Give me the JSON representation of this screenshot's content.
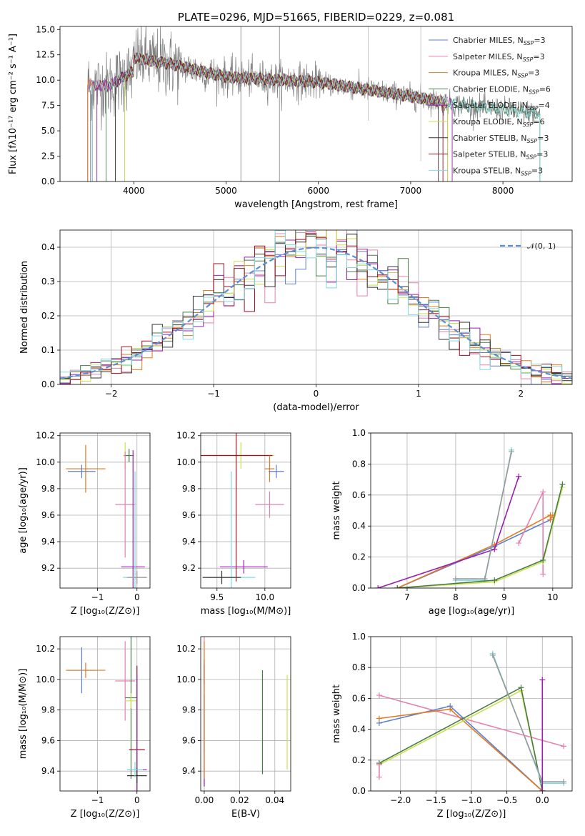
{
  "chart_data": [
    {
      "id": "spectrum",
      "type": "line",
      "title": "PLATE=0296, MJD=51665, FIBERID=0229, z=0.081",
      "xlabel": "wavelength [Angstrom, rest frame]",
      "ylabel": "Flux [fλ10⁻¹⁷ erg cm⁻² s⁻¹ A⁻¹]",
      "xlim": [
        3200,
        8750
      ],
      "ylim": [
        0,
        15.3
      ],
      "xticks": [
        4000,
        5000,
        6000,
        7000,
        8000
      ],
      "yticks": [
        0.0,
        2.5,
        5.0,
        7.5,
        10.0,
        12.5,
        15.0
      ],
      "grid": false,
      "legend_position": "top-right",
      "data_color": "#808080",
      "legend": [
        {
          "name": "Chabrier MILES, N",
          "sub": "SSP",
          "suffix": "=3",
          "color": "#5b7fd4"
        },
        {
          "name": "Salpeter MILES, N",
          "sub": "SSP",
          "suffix": "=3",
          "color": "#e680b0"
        },
        {
          "name": "Kroupa MILES, N",
          "sub": "SSP",
          "suffix": "=3",
          "color": "#e07a1f"
        },
        {
          "name": "Chabrier ELODIE, N",
          "sub": "SSP",
          "suffix": "=6",
          "color": "#4a7a4a"
        },
        {
          "name": "Salpeter ELODIE, N",
          "sub": "SSP",
          "suffix": "=4",
          "color": "#9a1fb0"
        },
        {
          "name": "Kroupa ELODIE, N",
          "sub": "SSP",
          "suffix": "=6",
          "color": "#c7e34a"
        },
        {
          "name": "Chabrier STELIB, N",
          "sub": "SSP",
          "suffix": "=3",
          "color": "#333333"
        },
        {
          "name": "Salpeter STELIB, N",
          "sub": "SSP",
          "suffix": "=3",
          "color": "#a01020"
        },
        {
          "name": "Kroupa STELIB, N",
          "sub": "SSP",
          "suffix": "=3",
          "color": "#7fdbe0"
        }
      ]
    },
    {
      "id": "residuals",
      "type": "line",
      "xlabel": "(data-model)/error",
      "ylabel": "Normed distribution",
      "xlim": [
        -2.5,
        2.5
      ],
      "ylim": [
        0,
        0.45
      ],
      "xticks": [
        -2,
        -1,
        0,
        1,
        2
      ],
      "yticks": [
        0.0,
        0.1,
        0.2,
        0.3,
        0.4
      ],
      "grid": true,
      "legend_position": "top-right",
      "gaussian_label": "𝒩(0, 1)",
      "gaussian_color": "#5b8fd4",
      "hist_bin_width": 0.1,
      "hist_range": [
        -2.5,
        2.5
      ]
    },
    {
      "id": "age_vs_Z",
      "type": "scatter",
      "xlabel": "Z [log₁₀(Z/Z⊙)]",
      "ylabel": "age  [log₁₀(age/yr)]",
      "xlim": [
        -1.95,
        0.33
      ],
      "ylim": [
        9.05,
        10.22
      ],
      "xticks": [
        -1,
        0
      ],
      "yticks": [
        9.2,
        9.4,
        9.6,
        9.8,
        10.0,
        10.2
      ],
      "grid": true,
      "points": [
        {
          "x": -1.3,
          "y": 9.95,
          "xe": 0.5,
          "ye": 0.18,
          "color": "#e07a1f"
        },
        {
          "x": -1.4,
          "y": 9.93,
          "xe": 0.35,
          "ye": 0.05,
          "color": "#5b7fd4"
        },
        {
          "x": -0.3,
          "y": 10.05,
          "xe": 0.05,
          "ye": 0.1,
          "color": "#c7e34a"
        },
        {
          "x": -0.2,
          "y": 10.05,
          "xe": 0.12,
          "ye": 0.05,
          "color": "#4a7a4a"
        },
        {
          "x": -0.3,
          "y": 9.68,
          "xe": 0.25,
          "ye": 0.4,
          "color": "#e680b0"
        },
        {
          "x": -0.1,
          "y": 9.21,
          "xe": 0.3,
          "ye": 0.88,
          "color": "#9a1fb0"
        },
        {
          "x": -0.05,
          "y": 9.13,
          "xe": 0.3,
          "ye": 0.8,
          "color": "#7fdbe0"
        },
        {
          "x": 0.0,
          "y": 9.13,
          "xe": 0.25,
          "ye": 0.05,
          "color": "#999999"
        }
      ]
    },
    {
      "id": "age_vs_mass",
      "type": "scatter",
      "xlabel": "mass [log₁₀(M/M⊙)]",
      "xlim": [
        9.33,
        10.27
      ],
      "ylim": [
        9.05,
        10.22
      ],
      "xticks": [
        9.5,
        10.0
      ],
      "yticks": [
        9.2,
        9.4,
        9.6,
        9.8,
        10.0,
        10.2
      ],
      "grid": true,
      "points": [
        {
          "x": 9.75,
          "y": 10.05,
          "xe": 0.35,
          "ye": 0.1,
          "color": "#c7e34a"
        },
        {
          "x": 9.7,
          "y": 10.05,
          "xe": 0.38,
          "ye": 0.95,
          "color": "#a01020"
        },
        {
          "x": 10.05,
          "y": 9.95,
          "xe": 0.05,
          "ye": 0.1,
          "color": "#e07a1f"
        },
        {
          "x": 10.12,
          "y": 9.93,
          "xe": 0.08,
          "ye": 0.05,
          "color": "#5b7fd4"
        },
        {
          "x": 10.05,
          "y": 9.68,
          "xe": 0.15,
          "ye": 0.1,
          "color": "#e680b0"
        },
        {
          "x": 9.78,
          "y": 9.21,
          "xe": 0.25,
          "ye": 0.05,
          "color": "#9a1fb0"
        },
        {
          "x": 9.65,
          "y": 9.13,
          "xe": 0.25,
          "ye": 0.8,
          "color": "#7fdbe0"
        },
        {
          "x": 9.55,
          "y": 9.13,
          "xe": 0.2,
          "ye": 0.05,
          "color": "#333333"
        }
      ]
    },
    {
      "id": "massweight_vs_age",
      "type": "line",
      "xlabel": "age  [log₁₀(age/yr)]",
      "ylabel": "mass weight",
      "xlim": [
        6.25,
        10.4
      ],
      "ylim": [
        0,
        1.0
      ],
      "xticks": [
        7,
        8,
        9,
        10
      ],
      "yticks": [
        0.0,
        0.2,
        0.4,
        0.6,
        0.8,
        1.0
      ],
      "grid": true,
      "series": [
        {
          "color": "#5b7fd4",
          "x": [
            6.8,
            8.8,
            9.95
          ],
          "y": [
            0.0,
            0.27,
            0.44
          ]
        },
        {
          "color": "#e07a1f",
          "x": [
            6.8,
            8.8,
            9.95
          ],
          "y": [
            0.0,
            0.28,
            0.47
          ]
        },
        {
          "color": "#9a1fb0",
          "x": [
            6.4,
            8.8,
            9.3
          ],
          "y": [
            0.0,
            0.25,
            0.72
          ]
        },
        {
          "color": "#e680b0",
          "x": [
            9.3,
            9.8,
            9.8
          ],
          "y": [
            0.29,
            0.62,
            0.09
          ]
        },
        {
          "color": "#7fdbe0",
          "x": [
            8.0,
            8.6,
            9.15
          ],
          "y": [
            0.05,
            0.05,
            0.89
          ]
        },
        {
          "color": "#999999",
          "x": [
            8.0,
            8.6,
            9.15
          ],
          "y": [
            0.06,
            0.06,
            0.88
          ]
        },
        {
          "color": "#c7e34a",
          "x": [
            6.8,
            8.8,
            9.8,
            10.2
          ],
          "y": [
            0.0,
            0.04,
            0.17,
            0.65
          ]
        },
        {
          "color": "#4a7a4a",
          "x": [
            6.8,
            8.8,
            9.8,
            10.2
          ],
          "y": [
            0.0,
            0.05,
            0.18,
            0.67
          ]
        },
        {
          "color": "#e07a1f",
          "x": [
            9.95,
            10.0
          ],
          "y": [
            0.44,
            0.47
          ]
        }
      ]
    },
    {
      "id": "mass_vs_Z",
      "type": "scatter",
      "xlabel": "Z [log₁₀(Z/Z⊙)]",
      "ylabel": "mass [log₁₀(M/M⊙)]",
      "xlim": [
        -1.95,
        0.33
      ],
      "ylim": [
        9.27,
        10.28
      ],
      "xticks": [
        -1,
        0
      ],
      "yticks": [
        9.4,
        9.6,
        9.8,
        10.0,
        10.2
      ],
      "grid": true,
      "points": [
        {
          "x": -1.4,
          "y": 10.06,
          "xe": 0.35,
          "ye": 0.15,
          "color": "#5b7fd4"
        },
        {
          "x": -1.3,
          "y": 10.06,
          "xe": 0.5,
          "ye": 0.05,
          "color": "#e07a1f"
        },
        {
          "x": -0.3,
          "y": 9.99,
          "xe": 0.25,
          "ye": 0.26,
          "color": "#e680b0"
        },
        {
          "x": -0.15,
          "y": 9.88,
          "xe": 0.15,
          "ye": 0.53,
          "color": "#4a7a4a"
        },
        {
          "x": -0.15,
          "y": 9.86,
          "xe": 0.15,
          "ye": 0.05,
          "color": "#c7e34a"
        },
        {
          "x": 0.0,
          "y": 9.54,
          "xe": 0.2,
          "ye": 0.55,
          "color": "#a01020"
        },
        {
          "x": 0.0,
          "y": 9.41,
          "xe": 0.25,
          "ye": 0.62,
          "color": "#9a1fb0"
        },
        {
          "x": 0.0,
          "y": 9.37,
          "xe": 0.25,
          "ye": 0.05,
          "color": "#333333"
        },
        {
          "x": -0.05,
          "y": 9.41,
          "xe": 0.2,
          "ye": 0.05,
          "color": "#7fdbe0"
        }
      ]
    },
    {
      "id": "mass_vs_ebv",
      "type": "scatter",
      "xlabel": "E(B-V)",
      "xlim": [
        -0.002,
        0.049
      ],
      "ylim": [
        9.27,
        10.28
      ],
      "xticks": [
        0.0,
        0.02,
        0.04
      ],
      "yticks": [
        9.4,
        9.6,
        9.8,
        10.0,
        10.2
      ],
      "grid": true,
      "points": [
        {
          "x": 0.0,
          "y": 9.9,
          "xe": 0.0,
          "ye": 0.38,
          "color": "#e680b0"
        },
        {
          "x": 0.0,
          "y": 10.05,
          "xe": 0.0,
          "ye": 0.08,
          "color": "#a01020"
        },
        {
          "x": 0.0,
          "y": 9.6,
          "xe": 0.0,
          "ye": 0.3,
          "color": "#5b7fd4"
        },
        {
          "x": 0.0,
          "y": 9.7,
          "xe": 0.0,
          "ye": 0.4,
          "color": "#9a1fb0"
        },
        {
          "x": 0.0,
          "y": 9.8,
          "xe": 0.0,
          "ye": 0.45,
          "color": "#e07a1f"
        },
        {
          "x": 0.033,
          "y": 9.72,
          "xe": 0.0,
          "ye": 0.34,
          "color": "#4a7a4a"
        },
        {
          "x": 0.047,
          "y": 9.72,
          "xe": 0.0,
          "ye": 0.31,
          "color": "#c7e34a"
        }
      ]
    },
    {
      "id": "massweight_vs_Z",
      "type": "line",
      "xlabel": "Z [log₁₀(Z/Z⊙)]",
      "ylabel": "mass weight",
      "xlim": [
        -2.42,
        0.42
      ],
      "ylim": [
        0,
        1.0
      ],
      "xticks": [
        -2.0,
        -1.5,
        -1.0,
        -0.5,
        0.0
      ],
      "yticks": [
        0.0,
        0.2,
        0.4,
        0.6,
        0.8,
        1.0
      ],
      "grid": true,
      "series": [
        {
          "color": "#e680b0",
          "x": [
            -2.3,
            0.3
          ],
          "y": [
            0.62,
            0.29
          ]
        },
        {
          "color": "#5b7fd4",
          "x": [
            -2.3,
            -1.3,
            0.0
          ],
          "y": [
            0.44,
            0.55,
            0.0
          ]
        },
        {
          "color": "#e07a1f",
          "x": [
            -2.3,
            -1.3,
            0.0
          ],
          "y": [
            0.47,
            0.53,
            0.0
          ]
        },
        {
          "color": "#c7e34a",
          "x": [
            -2.3,
            -0.3,
            0.0
          ],
          "y": [
            0.17,
            0.65,
            0.0
          ]
        },
        {
          "color": "#4a7a4a",
          "x": [
            -2.3,
            -0.3,
            0.0
          ],
          "y": [
            0.18,
            0.67,
            0.0
          ]
        },
        {
          "color": "#7fdbe0",
          "x": [
            -0.7,
            0.0,
            0.3
          ],
          "y": [
            0.89,
            0.05,
            0.05
          ]
        },
        {
          "color": "#999999",
          "x": [
            -0.7,
            0.0,
            0.3
          ],
          "y": [
            0.88,
            0.06,
            0.06
          ]
        },
        {
          "color": "#9a1fb0",
          "x": [
            0.0,
            0.0
          ],
          "y": [
            0.0,
            0.72
          ]
        },
        {
          "color": "#e680b0",
          "x": [
            -2.3,
            -2.3
          ],
          "y": [
            0.09,
            0.17
          ]
        }
      ]
    }
  ]
}
